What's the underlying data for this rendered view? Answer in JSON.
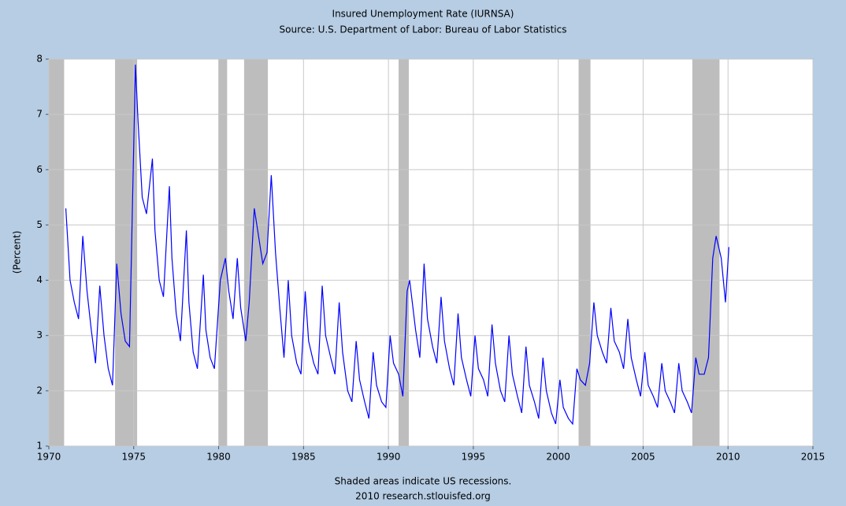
{
  "chart_data": {
    "type": "line",
    "title": "Insured Unemployment Rate (IURNSA)",
    "subtitle": "Source: U.S. Department of Labor: Bureau of Labor Statistics",
    "ylabel": "(Percent)",
    "note": "Shaded areas indicate US recessions.",
    "source": "2010 research.stlouisfed.org",
    "color": "#0000ff",
    "recession_color": "#bdbdbd",
    "recessions": [
      [
        1969.9,
        1970.9
      ],
      [
        1973.9,
        1975.2
      ],
      [
        1980.0,
        1980.5
      ],
      [
        1981.5,
        1982.9
      ],
      [
        1990.6,
        1991.2
      ],
      [
        2001.2,
        2001.9
      ],
      [
        2007.9,
        2009.5
      ]
    ],
    "x": [
      1971.0,
      1971.25,
      1971.5,
      1971.75,
      1972.0,
      1972.25,
      1972.5,
      1972.75,
      1973.0,
      1973.25,
      1973.5,
      1973.75,
      1974.0,
      1974.25,
      1974.5,
      1974.75,
      1975.1,
      1975.25,
      1975.5,
      1975.75,
      1976.1,
      1976.25,
      1976.5,
      1976.75,
      1977.1,
      1977.25,
      1977.5,
      1977.75,
      1978.1,
      1978.25,
      1978.5,
      1978.75,
      1979.1,
      1979.25,
      1979.5,
      1979.75,
      1980.1,
      1980.4,
      1980.6,
      1980.85,
      1981.1,
      1981.3,
      1981.6,
      1981.8,
      1982.1,
      1982.35,
      1982.6,
      1982.85,
      1983.1,
      1983.35,
      1983.6,
      1983.85,
      1984.1,
      1984.3,
      1984.6,
      1984.85,
      1985.1,
      1985.3,
      1985.6,
      1985.85,
      1986.1,
      1986.3,
      1986.6,
      1986.85,
      1987.1,
      1987.3,
      1987.6,
      1987.85,
      1988.1,
      1988.3,
      1988.6,
      1988.85,
      1989.1,
      1989.3,
      1989.6,
      1989.85,
      1990.1,
      1990.3,
      1990.6,
      1990.85,
      1991.1,
      1991.25,
      1991.6,
      1991.85,
      1992.1,
      1992.3,
      1992.6,
      1992.85,
      1993.1,
      1993.3,
      1993.6,
      1993.85,
      1994.1,
      1994.3,
      1994.6,
      1994.85,
      1995.1,
      1995.3,
      1995.6,
      1995.85,
      1996.1,
      1996.3,
      1996.6,
      1996.85,
      1997.1,
      1997.3,
      1997.6,
      1997.85,
      1998.1,
      1998.3,
      1998.6,
      1998.85,
      1999.1,
      1999.3,
      1999.6,
      1999.85,
      2000.1,
      2000.3,
      2000.6,
      2000.85,
      2001.1,
      2001.3,
      2001.6,
      2001.85,
      2002.1,
      2002.3,
      2002.6,
      2002.85,
      2003.1,
      2003.3,
      2003.6,
      2003.85,
      2004.1,
      2004.3,
      2004.6,
      2004.85,
      2005.1,
      2005.3,
      2005.6,
      2005.85,
      2006.1,
      2006.3,
      2006.6,
      2006.85,
      2007.1,
      2007.3,
      2007.6,
      2007.85,
      2008.1,
      2008.3,
      2008.6,
      2008.85,
      2009.1,
      2009.3,
      2009.6,
      2009.85,
      2010.05
    ],
    "values": [
      5.3,
      4.0,
      3.6,
      3.3,
      4.8,
      3.8,
      3.1,
      2.5,
      3.9,
      3.0,
      2.4,
      2.1,
      4.3,
      3.4,
      2.9,
      2.8,
      7.9,
      6.9,
      5.5,
      5.2,
      6.2,
      4.9,
      4.0,
      3.7,
      5.7,
      4.4,
      3.4,
      2.9,
      4.9,
      3.6,
      2.7,
      2.4,
      4.1,
      3.1,
      2.6,
      2.4,
      4.0,
      4.4,
      3.8,
      3.3,
      4.4,
      3.5,
      2.9,
      3.6,
      5.3,
      4.8,
      4.3,
      4.5,
      5.9,
      4.5,
      3.5,
      2.6,
      4.0,
      3.0,
      2.5,
      2.3,
      3.8,
      2.9,
      2.5,
      2.3,
      3.9,
      3.0,
      2.6,
      2.3,
      3.6,
      2.7,
      2.0,
      1.8,
      2.9,
      2.2,
      1.8,
      1.5,
      2.7,
      2.1,
      1.8,
      1.7,
      3.0,
      2.5,
      2.3,
      1.9,
      3.8,
      4.0,
      3.1,
      2.6,
      4.3,
      3.3,
      2.8,
      2.5,
      3.7,
      2.9,
      2.4,
      2.1,
      3.4,
      2.6,
      2.2,
      1.9,
      3.0,
      2.4,
      2.2,
      1.9,
      3.2,
      2.5,
      2.0,
      1.8,
      3.0,
      2.3,
      1.9,
      1.6,
      2.8,
      2.1,
      1.8,
      1.5,
      2.6,
      2.0,
      1.6,
      1.4,
      2.2,
      1.7,
      1.5,
      1.4,
      2.4,
      2.2,
      2.1,
      2.5,
      3.6,
      3.0,
      2.7,
      2.5,
      3.5,
      2.9,
      2.7,
      2.4,
      3.3,
      2.6,
      2.2,
      1.9,
      2.7,
      2.1,
      1.9,
      1.7,
      2.5,
      2.0,
      1.8,
      1.6,
      2.5,
      2.0,
      1.8,
      1.6,
      2.6,
      2.3,
      2.3,
      2.6,
      4.4,
      4.8,
      4.4,
      3.6,
      4.6
    ],
    "xlim": [
      1970,
      2015
    ],
    "ylim": [
      1,
      8
    ],
    "xticks": [
      1970,
      1975,
      1980,
      1985,
      1990,
      1995,
      2000,
      2005,
      2010,
      2015
    ],
    "yticks": [
      1,
      2,
      3,
      4,
      5,
      6,
      7,
      8
    ],
    "grid": true
  }
}
